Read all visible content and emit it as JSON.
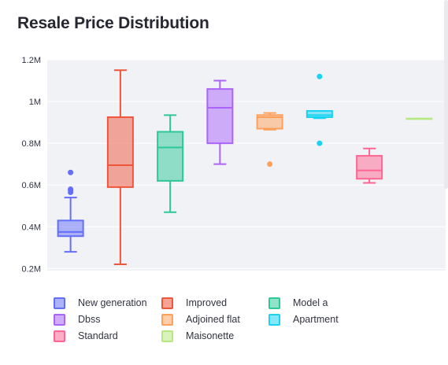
{
  "title": "Resale Price Distribution",
  "chart_data": {
    "type": "box",
    "title": "Resale Price Distribution",
    "xlabel": "",
    "ylabel": "",
    "ylim": [
      190000,
      1200000
    ],
    "yticks": [
      200000,
      400000,
      600000,
      800000,
      1000000,
      1200000
    ],
    "ytick_labels": [
      "0.2M",
      "0.4M",
      "0.6M",
      "0.8M",
      "1M",
      "1.2M"
    ],
    "grid": true,
    "legend_position": "bottom",
    "series": [
      {
        "name": "New generation",
        "color": "#636efa",
        "min": 280000,
        "q1": 355000,
        "median": 375000,
        "q3": 430000,
        "max": 540000,
        "outliers": [
          565000,
          575000,
          580000,
          660000
        ]
      },
      {
        "name": "Improved",
        "color": "#ef553b",
        "min": 220000,
        "q1": 590000,
        "median": 695000,
        "q3": 925000,
        "max": 1150000,
        "outliers": []
      },
      {
        "name": "Model a",
        "color": "#2ec898",
        "min": 470000,
        "q1": 620000,
        "median": 780000,
        "q3": 855000,
        "max": 935000,
        "outliers": []
      },
      {
        "name": "Dbss",
        "color": "#ab63fa",
        "min": 700000,
        "q1": 800000,
        "median": 970000,
        "q3": 1060000,
        "max": 1100000,
        "outliers": []
      },
      {
        "name": "Adjoined flat",
        "color": "#ffa15a",
        "min": 865000,
        "q1": 870000,
        "median": 925000,
        "q3": 935000,
        "max": 945000,
        "outliers": [
          700000
        ]
      },
      {
        "name": "Apartment",
        "color": "#19d3f3",
        "min": 920000,
        "q1": 925000,
        "median": 935000,
        "q3": 955000,
        "max": 955000,
        "outliers": [
          800000,
          1120000
        ]
      },
      {
        "name": "Standard",
        "color": "#ff6692",
        "min": 610000,
        "q1": 630000,
        "median": 670000,
        "q3": 740000,
        "max": 775000,
        "outliers": []
      },
      {
        "name": "Maisonette",
        "color": "#b6e880",
        "min": 918000,
        "q1": 918000,
        "median": 918000,
        "q3": 918000,
        "max": 918000,
        "outliers": []
      }
    ]
  },
  "legend": [
    {
      "label": "New generation",
      "color": "#636efa"
    },
    {
      "label": "Improved",
      "color": "#ef553b"
    },
    {
      "label": "Model a",
      "color": "#2ec898"
    },
    {
      "label": "Dbss",
      "color": "#ab63fa"
    },
    {
      "label": "Adjoined flat",
      "color": "#ffa15a"
    },
    {
      "label": "Apartment",
      "color": "#19d3f3"
    },
    {
      "label": "Standard",
      "color": "#ff6692"
    },
    {
      "label": "Maisonette",
      "color": "#b6e880"
    }
  ]
}
